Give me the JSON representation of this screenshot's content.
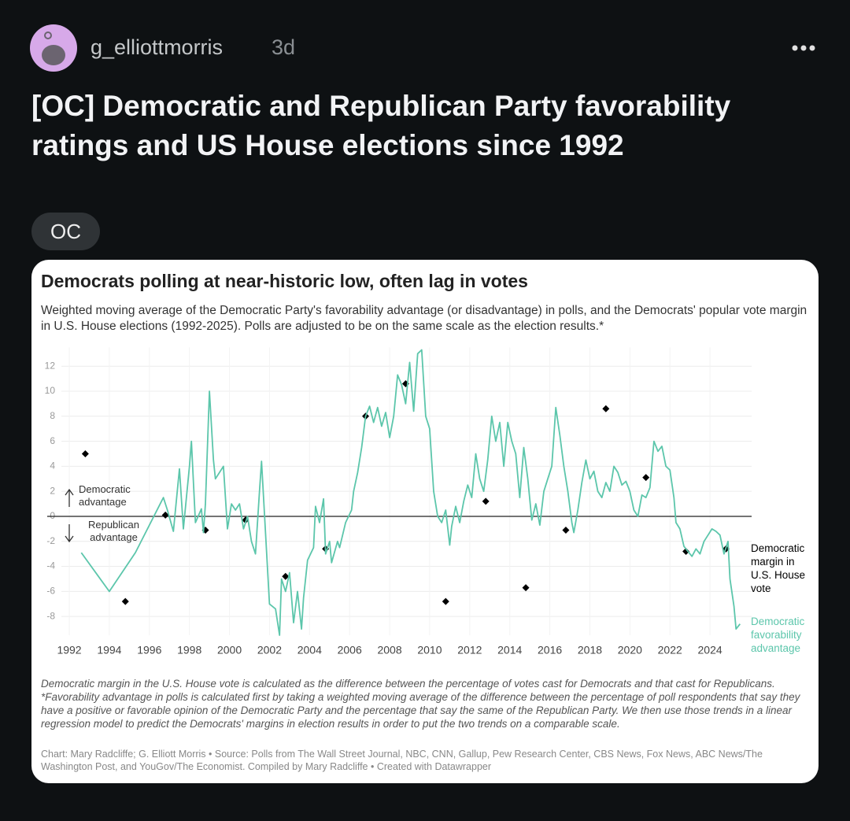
{
  "post": {
    "username": "g_elliottmorris",
    "age": "3d",
    "title": "[OC] Democratic and Republican Party favorability ratings and US House elections since 1992",
    "flair": "OC"
  },
  "chart_data": {
    "type": "line",
    "title": "Democrats polling at near-historic low, often lag in votes",
    "subtitle": "Weighted moving average of the Democratic Party's favorability advantage (or disadvantage) in polls, and the Democrats' popular vote margin in U.S. House elections (1992-2025). Polls are adjusted to be on the same scale as the election results.*",
    "annotations": [
      "Democratic advantage",
      "Republican advantage"
    ],
    "xlim": [
      1991,
      2026.5
    ],
    "xticks": [
      1992,
      1994,
      1996,
      1998,
      2000,
      2002,
      2004,
      2006,
      2008,
      2010,
      2012,
      2014,
      2016,
      2018,
      2020,
      2022,
      2024
    ],
    "ylim": [
      -9.5,
      13.5
    ],
    "yticks": [
      -8,
      -6,
      -4,
      -2,
      0,
      2,
      4,
      6,
      8,
      10,
      12
    ],
    "grid": true,
    "series": [
      {
        "name": "Democratic margin in U.S. House vote",
        "color": "#000000",
        "style": "diamond",
        "x": [
          1992.8,
          1994.8,
          1996.8,
          1998.8,
          2000.8,
          2002.8,
          2004.8,
          2006.8,
          2008.8,
          2010.8,
          2012.8,
          2014.8,
          2016.8,
          2018.8,
          2020.8,
          2022.8,
          2024.8
        ],
        "values": [
          5.0,
          -6.8,
          0.1,
          -1.1,
          -0.3,
          -4.8,
          -2.6,
          8.0,
          10.6,
          -6.8,
          1.2,
          -5.7,
          -1.1,
          8.6,
          3.1,
          -2.8,
          -2.6
        ]
      },
      {
        "name": "Democratic favorability advantage",
        "color": "#5cc6ab",
        "style": "line",
        "x": [
          1992.6,
          1994.0,
          1995.3,
          1996.7,
          1996.9,
          1997.2,
          1997.5,
          1997.7,
          1998.0,
          1998.1,
          1998.3,
          1998.6,
          1998.7,
          1998.8,
          1999.0,
          1999.2,
          1999.3,
          1999.7,
          1999.9,
          2000.1,
          2000.3,
          2000.5,
          2000.7,
          2000.9,
          2001.1,
          2001.3,
          2001.5,
          2001.6,
          2002.0,
          2002.3,
          2002.5,
          2002.6,
          2002.8,
          2003.0,
          2003.2,
          2003.4,
          2003.6,
          2003.7,
          2003.9,
          2004.2,
          2004.3,
          2004.5,
          2004.7,
          2004.8,
          2005.0,
          2005.1,
          2005.4,
          2005.5,
          2005.8,
          2006.1,
          2006.2,
          2006.4,
          2006.6,
          2006.8,
          2007.0,
          2007.2,
          2007.4,
          2007.6,
          2007.8,
          2008.0,
          2008.2,
          2008.4,
          2008.6,
          2008.8,
          2009.0,
          2009.2,
          2009.4,
          2009.6,
          2009.8,
          2010.0,
          2010.2,
          2010.4,
          2010.6,
          2010.8,
          2011.0,
          2011.1,
          2011.3,
          2011.5,
          2011.7,
          2011.9,
          2012.1,
          2012.3,
          2012.5,
          2012.7,
          2012.9,
          2013.1,
          2013.3,
          2013.5,
          2013.7,
          2013.9,
          2014.1,
          2014.3,
          2014.5,
          2014.7,
          2014.9,
          2015.1,
          2015.3,
          2015.5,
          2015.7,
          2015.9,
          2016.1,
          2016.3,
          2016.5,
          2016.7,
          2016.9,
          2017.1,
          2017.2,
          2017.4,
          2017.6,
          2017.8,
          2018.0,
          2018.2,
          2018.4,
          2018.6,
          2018.8,
          2019.0,
          2019.2,
          2019.4,
          2019.6,
          2019.8,
          2020.0,
          2020.2,
          2020.4,
          2020.6,
          2020.8,
          2021.0,
          2021.2,
          2021.4,
          2021.6,
          2021.8,
          2022.0,
          2022.2,
          2022.3,
          2022.5,
          2022.7,
          2022.9,
          2023.1,
          2023.3,
          2023.5,
          2023.7,
          2023.9,
          2024.1,
          2024.3,
          2024.5,
          2024.7,
          2024.9,
          2025.0,
          2025.2,
          2025.3,
          2025.5
        ],
        "values": [
          -2.9,
          -6.0,
          -2.9,
          1.5,
          0.5,
          -1.2,
          3.8,
          -1,
          4,
          6,
          -0.5,
          0.6,
          -1.3,
          1,
          10,
          4.5,
          3,
          4,
          -1,
          1,
          0.5,
          1,
          -1,
          0,
          -2,
          -3,
          2,
          4.4,
          -7,
          -7.4,
          -9.5,
          -5,
          -6,
          -4.5,
          -8.5,
          -6,
          -9,
          -6.5,
          -3.5,
          -2.5,
          0.8,
          -0.5,
          1.4,
          -3,
          -2,
          -3.7,
          -2,
          -2.5,
          -0.5,
          0.5,
          2,
          3.5,
          5.5,
          8,
          8.8,
          7.5,
          8.7,
          7.2,
          8.3,
          6.3,
          8,
          11.3,
          10.5,
          9,
          12.3,
          8.4,
          13,
          13.3,
          8,
          7,
          2,
          0,
          -0.5,
          0.5,
          -2.3,
          -0.8,
          0.8,
          -0.5,
          1.2,
          2.5,
          1.5,
          5,
          3,
          2,
          4.5,
          8,
          6,
          7.5,
          4,
          7.5,
          6,
          5,
          1.5,
          5.5,
          3,
          -0.3,
          1,
          -0.7,
          2,
          3,
          4,
          8.7,
          6.5,
          4,
          2,
          -0.5,
          -1.3,
          0.5,
          2.7,
          4.5,
          3,
          3.6,
          2,
          1.5,
          2.7,
          2,
          4,
          3.5,
          2.5,
          2.8,
          2,
          0.5,
          0,
          1.7,
          1.5,
          2.3,
          6,
          5.2,
          5.6,
          4,
          3.7,
          1.5,
          -0.5,
          -1,
          -2.4,
          -2.8,
          -3.2,
          -2.6,
          -3,
          -2,
          -1.5,
          -1,
          -1.2,
          -1.5,
          -3,
          -2,
          -5,
          -7.2,
          -9,
          -8.6
        ]
      }
    ],
    "notes": [
      "Democratic margin in the U.S. House vote is calculated as the difference between the percentage of votes cast for Democrats and that cast for Republicans.",
      "*Favorability advantage in polls is calculated first by taking a weighted moving average of the difference between the percentage of poll respondents that say they have a positive or favorable opinion of the Democratic Party and the percentage that say the same of the Republican Party. We then use those trends in a linear regression model to predict the Democrats' margins in election results in order to put the two trends on a comparable scale."
    ],
    "credit": "Chart: Mary Radcliffe; G. Elliott Morris • Source: Polls from The Wall Street Journal, NBC, CNN, Gallup, Pew Research Center, CBS News, Fox News, ABC News/The Washington Post, and YouGov/The Economist. Compiled by Mary Radcliffe • Created with Datawrapper"
  }
}
